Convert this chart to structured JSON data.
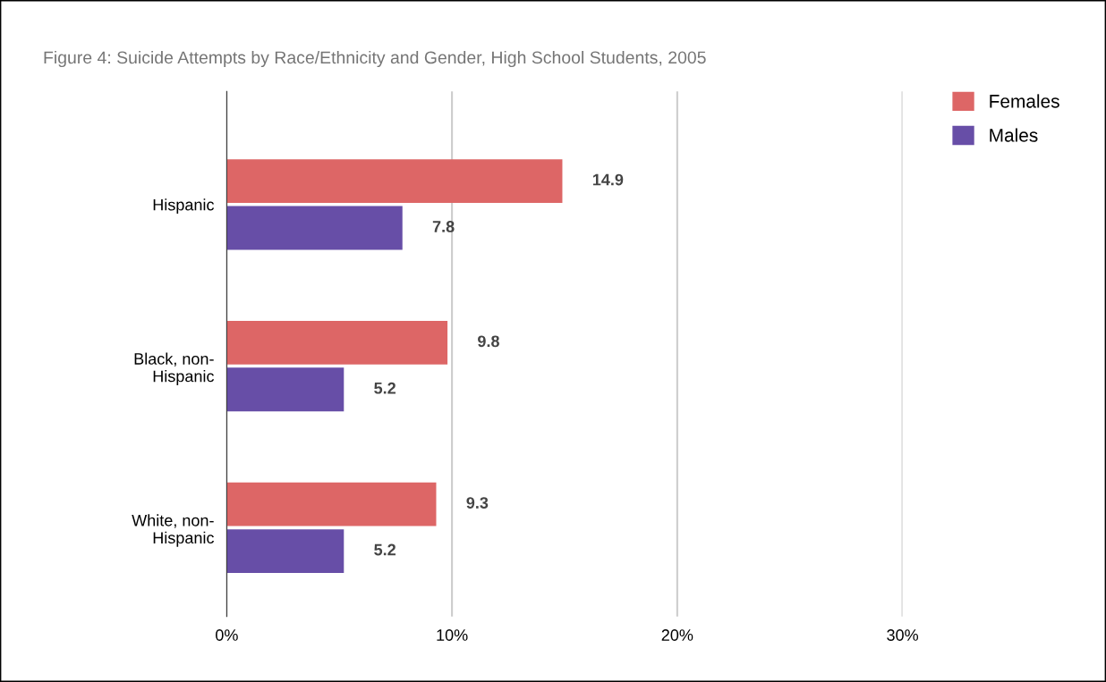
{
  "chart_data": {
    "type": "bar",
    "orientation": "horizontal",
    "title": "Figure 4: Suicide Attempts by Race/Ethnicity and Gender, High School Students, 2005",
    "categories": [
      "Hispanic",
      "Black, non-Hispanic",
      "White, non-Hispanic"
    ],
    "series": [
      {
        "name": "Females",
        "color": "#dd6666",
        "values": [
          14.9,
          9.8,
          9.3
        ]
      },
      {
        "name": "Males",
        "color": "#674ea7",
        "values": [
          7.8,
          5.2,
          5.2
        ]
      }
    ],
    "xlim": [
      0,
      30
    ],
    "xticks": [
      {
        "value": 0,
        "label": "0%"
      },
      {
        "value": 10,
        "label": "10%"
      },
      {
        "value": 20,
        "label": "20%"
      },
      {
        "value": 30,
        "label": "30%"
      }
    ],
    "grid": "x",
    "legend": "top right",
    "data_labels": true
  }
}
